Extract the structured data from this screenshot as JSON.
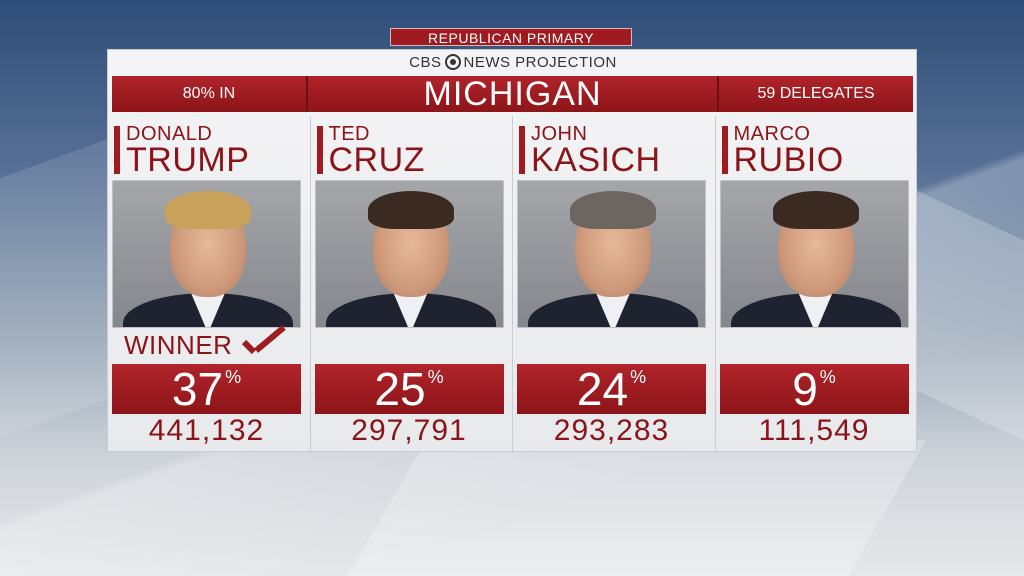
{
  "banner": {
    "label": "REPUBLICAN PRIMARY"
  },
  "projection": {
    "brand": "CBS",
    "label": "NEWS PROJECTION"
  },
  "header": {
    "reporting": "80% IN",
    "state": "MICHIGAN",
    "delegates": "59 DELEGATES"
  },
  "winner_label": "WINNER",
  "candidates": [
    {
      "first": "DONALD",
      "last": "TRUMP",
      "pct": "37",
      "pct_sign": "%",
      "votes": "441,132",
      "winner": true
    },
    {
      "first": "TED",
      "last": "CRUZ",
      "pct": "25",
      "pct_sign": "%",
      "votes": "297,791",
      "winner": false
    },
    {
      "first": "JOHN",
      "last": "KASICH",
      "pct": "24",
      "pct_sign": "%",
      "votes": "293,283",
      "winner": false
    },
    {
      "first": "MARCO",
      "last": "RUBIO",
      "pct": "9",
      "pct_sign": "%",
      "votes": "111,549",
      "winner": false
    }
  ],
  "colors": {
    "accent": "#9e1b1f",
    "panel": "#f4f4f6"
  }
}
